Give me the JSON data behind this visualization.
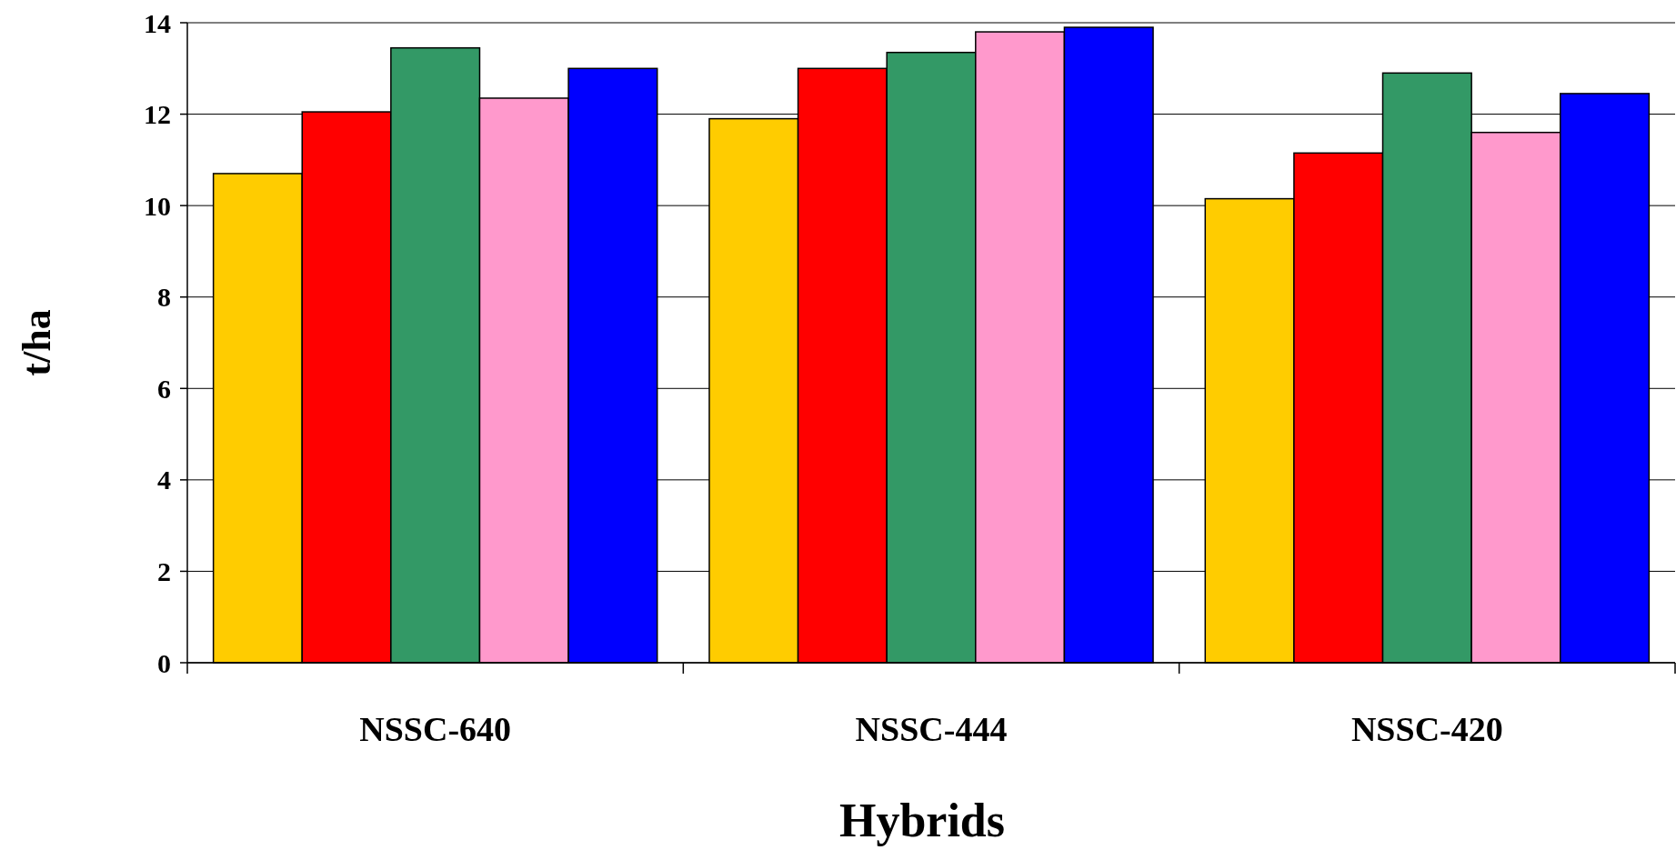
{
  "chart_data": {
    "type": "bar",
    "xlabel": "Hybrids",
    "ylabel": "t/ha",
    "categories": [
      "NSSC-640",
      "NSSC-444",
      "NSSC-420"
    ],
    "series": [
      {
        "color": "#ffcc00",
        "values": [
          10.7,
          11.9,
          10.15
        ]
      },
      {
        "color": "#ff0000",
        "values": [
          12.05,
          13.0,
          11.15
        ]
      },
      {
        "color": "#339966",
        "values": [
          13.45,
          13.35,
          12.9
        ]
      },
      {
        "color": "#ff99cc",
        "values": [
          12.35,
          13.8,
          11.6
        ]
      },
      {
        "color": "#0000ff",
        "values": [
          13.0,
          13.9,
          12.45
        ]
      }
    ],
    "ylim": [
      0,
      14
    ],
    "yticks": [
      0,
      2,
      4,
      6,
      8,
      10,
      12,
      14
    ],
    "grid": "y"
  }
}
